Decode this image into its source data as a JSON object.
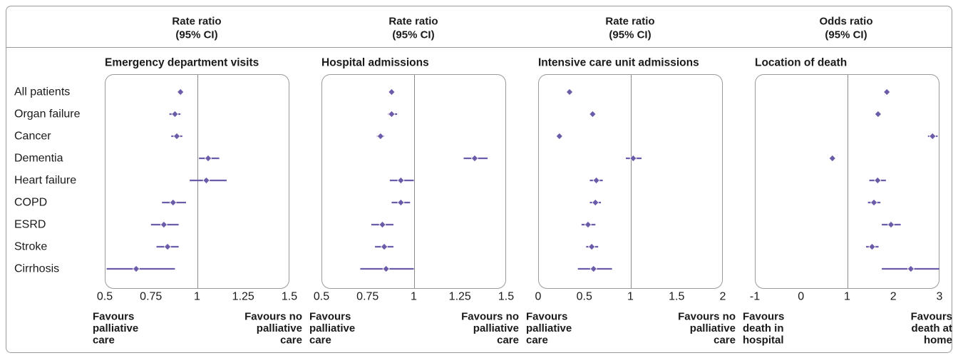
{
  "colors": {
    "marker": "#6b5ba8",
    "frame": "#9a9a9a",
    "text": "#1a1a1a"
  },
  "categories": [
    "All patients",
    "Organ failure",
    "Cancer",
    "Dementia",
    "Heart failure",
    "COPD",
    "ESRD",
    "Stroke",
    "Cirrhosis"
  ],
  "chart_data": [
    {
      "type": "forest",
      "header": [
        "Rate ratio",
        "(95% CI)"
      ],
      "title": "Emergency department visits",
      "xlim": [
        0.5,
        1.5
      ],
      "xticks": [
        0.5,
        0.75,
        1,
        1.25,
        1.5
      ],
      "tick_labels": [
        "0.5",
        "0.75",
        "1",
        "1.25",
        "1.5"
      ],
      "reference": 1,
      "estimates": [
        0.91,
        0.88,
        0.89,
        1.06,
        1.05,
        0.87,
        0.82,
        0.84,
        0.67
      ],
      "lower": [
        0.9,
        0.85,
        0.86,
        1.01,
        0.96,
        0.81,
        0.75,
        0.78,
        0.51
      ],
      "upper": [
        0.92,
        0.91,
        0.92,
        1.12,
        1.16,
        0.94,
        0.9,
        0.9,
        0.88
      ],
      "favours_left": [
        "Favours",
        "palliative",
        "care"
      ],
      "favours_right": [
        "Favours no",
        "palliative",
        "care"
      ]
    },
    {
      "type": "forest",
      "header": [
        "Rate ratio",
        "(95% CI)"
      ],
      "title": "Hospital admissions",
      "xlim": [
        0.5,
        1.5
      ],
      "xticks": [
        0.5,
        0.75,
        1,
        1.25,
        1.5
      ],
      "tick_labels": [
        "0.5",
        "0.75",
        "1",
        "1.25",
        "1.5"
      ],
      "reference": 1,
      "estimates": [
        0.88,
        0.88,
        0.82,
        1.33,
        0.93,
        0.93,
        0.83,
        0.84,
        0.85
      ],
      "lower": [
        0.87,
        0.86,
        0.8,
        1.27,
        0.87,
        0.88,
        0.77,
        0.79,
        0.71
      ],
      "upper": [
        0.89,
        0.91,
        0.84,
        1.4,
        1.0,
        0.98,
        0.89,
        0.89,
        1.0
      ],
      "favours_left": [
        "Favours",
        "palliative",
        "care"
      ],
      "favours_right": [
        "Favours no",
        "palliative",
        "care"
      ]
    },
    {
      "type": "forest",
      "header": [
        "Rate ratio",
        "(95% CI)"
      ],
      "title": "Intensive care unit admissions",
      "xlim": [
        0,
        2
      ],
      "xticks": [
        0,
        0.5,
        1,
        1.5,
        2
      ],
      "tick_labels": [
        "0",
        "0.5",
        "1",
        "1.5",
        "2"
      ],
      "reference": 1,
      "estimates": [
        0.34,
        0.59,
        0.23,
        1.03,
        0.63,
        0.62,
        0.54,
        0.58,
        0.6
      ],
      "lower": [
        0.33,
        0.58,
        0.22,
        0.95,
        0.56,
        0.56,
        0.47,
        0.52,
        0.43
      ],
      "upper": [
        0.35,
        0.6,
        0.24,
        1.12,
        0.7,
        0.68,
        0.62,
        0.65,
        0.8
      ],
      "favours_left": [
        "Favours",
        "palliative",
        "care"
      ],
      "favours_right": [
        "Favours no",
        "palliative",
        "care"
      ]
    },
    {
      "type": "forest",
      "header": [
        "Odds ratio",
        "(95% CI)"
      ],
      "title": "Location of death",
      "xlim": [
        -1,
        3
      ],
      "xticks": [
        -1,
        0,
        1,
        2,
        3
      ],
      "tick_labels": [
        "-1",
        "0",
        "1",
        "2",
        "3"
      ],
      "reference": 1,
      "estimates": [
        1.86,
        1.67,
        2.85,
        0.68,
        1.66,
        1.58,
        1.95,
        1.54,
        2.38
      ],
      "lower": [
        1.84,
        1.65,
        2.75,
        0.67,
        1.48,
        1.45,
        1.75,
        1.41,
        1.75
      ],
      "upper": [
        1.88,
        1.69,
        2.96,
        0.69,
        1.84,
        1.72,
        2.16,
        1.68,
        3.0
      ],
      "favours_left": [
        "Favours",
        "death in",
        "hospital"
      ],
      "favours_right": [
        "Favours",
        "death at",
        "home"
      ]
    }
  ]
}
